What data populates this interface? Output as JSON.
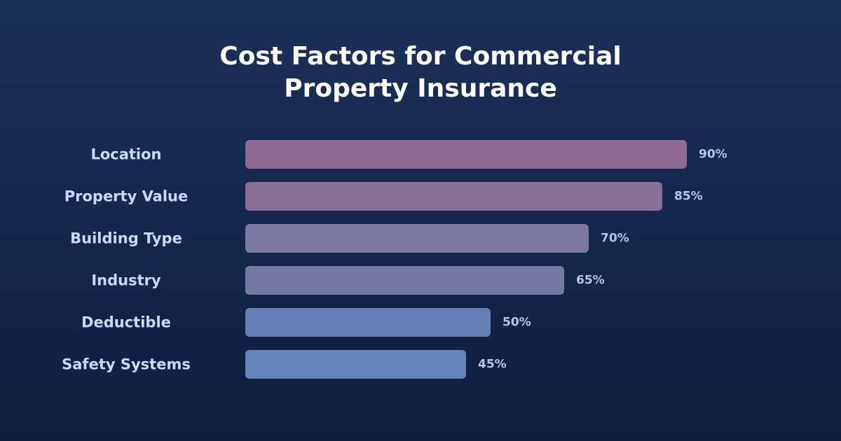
{
  "chart_data": {
    "type": "bar",
    "orientation": "horizontal",
    "title_lines": [
      "Cost Factors for Commercial",
      "Property Insurance"
    ],
    "categories": [
      "Location",
      "Property Value",
      "Building Type",
      "Industry",
      "Deductible",
      "Safety Systems"
    ],
    "values": [
      90,
      85,
      70,
      65,
      50,
      45
    ],
    "value_labels": [
      "90%",
      "85%",
      "70%",
      "65%",
      "50%",
      "45%"
    ],
    "bar_colors": [
      "#8f6b93",
      "#8a7097",
      "#7b78a3",
      "#7679a6",
      "#6681b5",
      "#6486b8"
    ],
    "xlim": [
      0,
      100
    ],
    "grid": false,
    "legend": "none"
  },
  "colors": {
    "background_top": "#1b3059",
    "background_bottom": "#0f1e3f",
    "title": "#ffffff",
    "category_label": "#c9daf6",
    "value_label": "#b4c6e4"
  }
}
